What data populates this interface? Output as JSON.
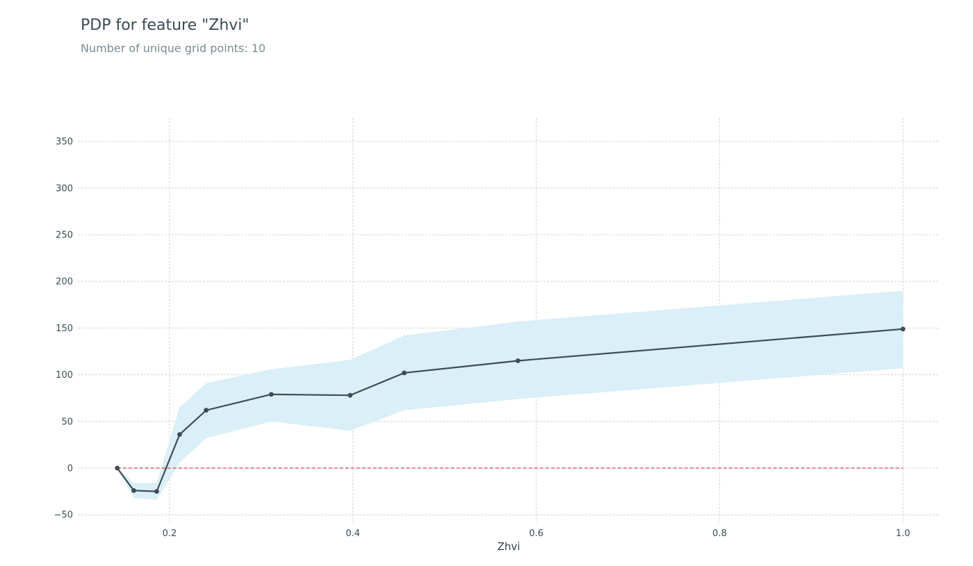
{
  "chart_data": {
    "type": "line",
    "title": "PDP for feature \"Zhvi\"",
    "subtitle": "Number of unique grid points: 10",
    "xlabel": "Zhvi",
    "ylabel": "",
    "xlim": [
      0.1,
      1.04
    ],
    "ylim": [
      -58,
      375
    ],
    "xticks": [
      0.2,
      0.4,
      0.6,
      0.8,
      1.0
    ],
    "xtick_labels": [
      "0.2",
      "0.4",
      "0.6",
      "0.8",
      "1.0"
    ],
    "yticks": [
      -50,
      0,
      50,
      100,
      150,
      200,
      250,
      300,
      350
    ],
    "ytick_labels": [
      "−50",
      "0",
      "50",
      "100",
      "150",
      "200",
      "250",
      "300",
      "350"
    ],
    "grid": true,
    "baseline": 0,
    "x": [
      0.143,
      0.161,
      0.186,
      0.211,
      0.24,
      0.311,
      0.397,
      0.456,
      0.58,
      1.0
    ],
    "series": [
      {
        "values": [
          0,
          -24,
          -25,
          36,
          62,
          79,
          78,
          102,
          115,
          149
        ],
        "lower": [
          0,
          -32,
          -34,
          6,
          32,
          50,
          40,
          62,
          74,
          107
        ],
        "upper": [
          0,
          -16,
          -16,
          65,
          91,
          106,
          116,
          142,
          157,
          190
        ]
      }
    ],
    "colors": {
      "line": "#3c4d55",
      "band": "#daeff7",
      "baseline": "#d9534f",
      "grid": "#d4d4d4"
    }
  }
}
